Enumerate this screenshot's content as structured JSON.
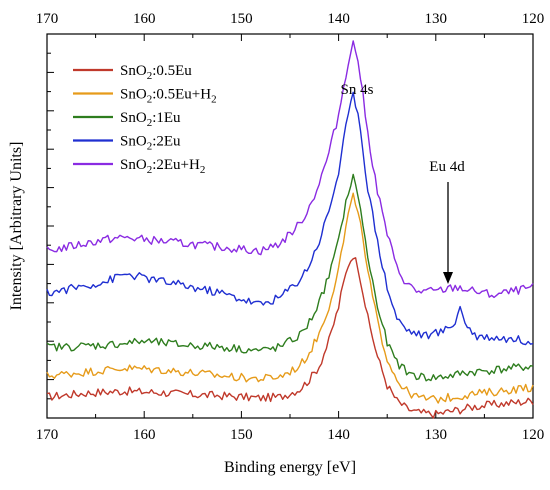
{
  "chart_data": {
    "type": "line",
    "title": "",
    "xlabel": "Binding energy [eV]",
    "ylabel": "Intensity [Arbitrary Units]",
    "xlim": [
      170,
      120
    ],
    "x_reversed": true,
    "x_ticks": [
      170,
      160,
      150,
      140,
      130,
      120
    ],
    "y_ticks_labeled": false,
    "ylim": [
      0,
      10
    ],
    "grid": false,
    "legend_position": "top-left",
    "annotations": [
      {
        "text": "Sn 4s",
        "x": 138.5,
        "y": 8.95
      },
      {
        "text": "Eu 4d",
        "x": 128.6,
        "y": 6.35,
        "arrow_to_y": 3.55
      }
    ],
    "x": [
      170,
      168,
      166,
      164,
      162,
      160,
      158,
      156,
      154,
      152,
      150,
      148,
      146,
      144,
      143,
      142,
      141,
      140,
      139.5,
      139,
      138.5,
      138,
      137.5,
      137,
      136,
      135,
      134,
      133,
      132,
      131,
      130,
      129,
      128,
      127.5,
      127,
      126,
      124,
      122,
      120
    ],
    "series": [
      {
        "name": "SnO2:0.5Eu",
        "label_main": "SnO",
        "label_sub1": "2",
        "label_rest": ":0.5Eu",
        "label_sub2": "",
        "color": "#c0392b",
        "values": [
          0.55,
          0.6,
          0.65,
          0.68,
          0.7,
          0.68,
          0.66,
          0.62,
          0.6,
          0.58,
          0.55,
          0.52,
          0.55,
          0.75,
          1.0,
          1.35,
          2.0,
          2.9,
          3.5,
          4.0,
          4.25,
          3.95,
          3.3,
          2.6,
          1.6,
          0.85,
          0.45,
          0.25,
          0.15,
          0.12,
          0.1,
          0.15,
          0.2,
          0.22,
          0.25,
          0.3,
          0.35,
          0.4,
          0.45
        ]
      },
      {
        "name": "SnO2:0.5Eu+H2",
        "label_main": "SnO",
        "label_sub1": "2",
        "label_rest": ":0.5Eu+H",
        "label_sub2": "2",
        "color": "#e69b1a",
        "values": [
          1.1,
          1.15,
          1.2,
          1.25,
          1.3,
          1.28,
          1.25,
          1.2,
          1.15,
          1.1,
          1.05,
          1.02,
          1.08,
          1.35,
          1.7,
          2.2,
          2.9,
          3.9,
          4.6,
          5.3,
          5.75,
          5.45,
          4.6,
          3.8,
          2.5,
          1.55,
          1.0,
          0.7,
          0.55,
          0.5,
          0.48,
          0.52,
          0.55,
          0.57,
          0.6,
          0.63,
          0.68,
          0.75,
          0.8
        ]
      },
      {
        "name": "SnO2:1Eu",
        "label_main": "SnO",
        "label_sub1": "2",
        "label_rest": ":1Eu",
        "label_sub2": "",
        "color": "#2e7d1e",
        "values": [
          1.85,
          1.85,
          1.88,
          1.9,
          1.95,
          2.0,
          1.95,
          1.9,
          1.88,
          1.85,
          1.8,
          1.75,
          1.85,
          2.15,
          2.5,
          3.0,
          3.7,
          4.6,
          5.3,
          5.9,
          6.25,
          5.85,
          5.0,
          4.2,
          2.9,
          1.95,
          1.45,
          1.2,
          1.1,
          1.05,
          1.05,
          1.08,
          1.12,
          1.15,
          1.18,
          1.2,
          1.25,
          1.3,
          1.35
        ]
      },
      {
        "name": "SnO2:2Eu",
        "label_main": "SnO",
        "label_sub1": "2",
        "label_rest": ":2Eu",
        "label_sub2": "",
        "color": "#1f2fd1",
        "values": [
          3.25,
          3.35,
          3.45,
          3.55,
          3.75,
          3.65,
          3.55,
          3.45,
          3.35,
          3.25,
          3.1,
          2.95,
          3.15,
          3.6,
          4.0,
          4.6,
          5.4,
          6.4,
          7.2,
          7.9,
          8.4,
          8.0,
          7.0,
          6.0,
          4.6,
          3.4,
          2.6,
          2.3,
          2.2,
          2.15,
          2.2,
          2.3,
          2.5,
          2.9,
          2.5,
          2.15,
          2.1,
          2.05,
          2.0
        ]
      },
      {
        "name": "SnO2:2Eu+H2",
        "label_main": "SnO",
        "label_sub1": "2",
        "label_rest": ":2Eu+H",
        "label_sub2": "2",
        "color": "#8a2be2",
        "values": [
          4.35,
          4.45,
          4.55,
          4.65,
          4.7,
          4.65,
          4.6,
          4.55,
          4.5,
          4.45,
          4.4,
          4.35,
          4.55,
          5.05,
          5.5,
          6.1,
          6.9,
          7.9,
          8.6,
          9.3,
          9.75,
          9.35,
          8.4,
          7.4,
          5.9,
          4.8,
          3.9,
          3.5,
          3.3,
          3.3,
          3.3,
          3.35,
          3.4,
          3.4,
          3.35,
          3.3,
          3.2,
          3.3,
          3.4
        ]
      }
    ]
  }
}
